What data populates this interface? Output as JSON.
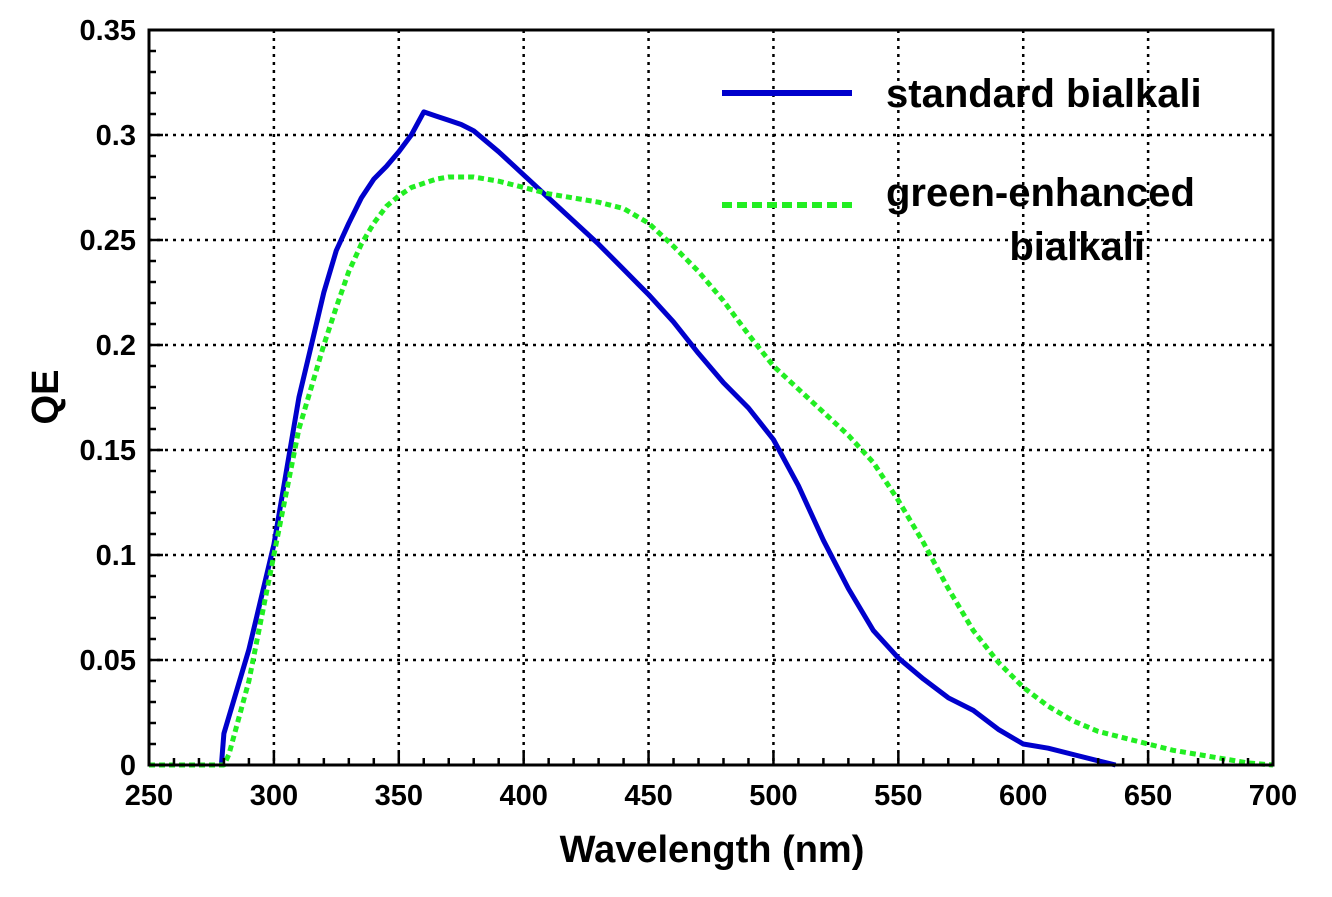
{
  "chart_data": {
    "type": "line",
    "title": "",
    "xlabel": "Wavelength (nm)",
    "ylabel": "QE",
    "xlim": [
      250,
      700
    ],
    "ylim": [
      0,
      0.35
    ],
    "x_ticks": [
      "250",
      "300",
      "350",
      "400",
      "450",
      "500",
      "550",
      "600",
      "650",
      "700"
    ],
    "y_ticks": [
      "0",
      "0.05",
      "0.1",
      "0.15",
      "0.2",
      "0.25",
      "0.3",
      "0.35"
    ],
    "grid": true,
    "legend_position": "top-right",
    "series": [
      {
        "name": "standard bialkali",
        "color": "#0000cc",
        "style": "solid",
        "x": [
          279,
          280,
          285,
          290,
          295,
          300,
          305,
          310,
          315,
          320,
          325,
          330,
          335,
          340,
          345,
          350,
          355,
          360,
          365,
          370,
          375,
          380,
          390,
          400,
          410,
          420,
          430,
          440,
          450,
          460,
          470,
          480,
          490,
          500,
          510,
          520,
          530,
          540,
          550,
          560,
          570,
          580,
          590,
          600,
          610,
          620,
          630,
          637
        ],
        "y": [
          0,
          0.015,
          0.035,
          0.055,
          0.08,
          0.105,
          0.14,
          0.175,
          0.2,
          0.225,
          0.245,
          0.258,
          0.27,
          0.279,
          0.285,
          0.292,
          0.3,
          0.311,
          0.309,
          0.307,
          0.305,
          0.302,
          0.292,
          0.281,
          0.27,
          0.259,
          0.248,
          0.236,
          0.224,
          0.211,
          0.196,
          0.182,
          0.17,
          0.155,
          0.133,
          0.107,
          0.084,
          0.064,
          0.051,
          0.041,
          0.032,
          0.026,
          0.017,
          0.01,
          0.008,
          0.005,
          0.002,
          0
        ]
      },
      {
        "name": "green-enhanced bialkali",
        "color": "#22ee22",
        "style": "dashed",
        "x": [
          250,
          280,
          282,
          290,
          295,
          300,
          305,
          310,
          315,
          320,
          325,
          330,
          335,
          340,
          345,
          350,
          355,
          360,
          365,
          370,
          375,
          380,
          390,
          400,
          410,
          420,
          430,
          440,
          450,
          460,
          470,
          480,
          490,
          500,
          510,
          520,
          530,
          540,
          550,
          560,
          570,
          580,
          590,
          600,
          610,
          620,
          630,
          640,
          650,
          660,
          670,
          680,
          690,
          700
        ],
        "y": [
          0,
          0,
          0.005,
          0.04,
          0.07,
          0.1,
          0.13,
          0.16,
          0.18,
          0.2,
          0.218,
          0.235,
          0.248,
          0.258,
          0.266,
          0.271,
          0.275,
          0.277,
          0.279,
          0.28,
          0.28,
          0.28,
          0.278,
          0.275,
          0.272,
          0.27,
          0.268,
          0.265,
          0.258,
          0.247,
          0.235,
          0.221,
          0.205,
          0.19,
          0.179,
          0.168,
          0.157,
          0.144,
          0.126,
          0.106,
          0.084,
          0.064,
          0.049,
          0.037,
          0.028,
          0.021,
          0.016,
          0.013,
          0.01,
          0.007,
          0.005,
          0.003,
          0.001,
          0
        ]
      }
    ],
    "legend": [
      {
        "lines": [
          "standard bialkali"
        ],
        "color": "#0000cc",
        "style": "solid"
      },
      {
        "lines": [
          "green-enhanced",
          "bialkali"
        ],
        "color": "#22ee22",
        "style": "dashed"
      }
    ]
  }
}
